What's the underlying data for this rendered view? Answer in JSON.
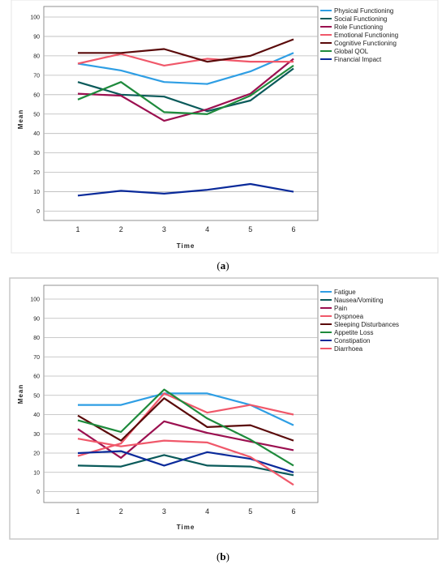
{
  "captions": {
    "a": "a",
    "b": "b"
  },
  "chart_data": [
    {
      "type": "line",
      "title": "",
      "xlabel": "Time",
      "ylabel": "Mean",
      "categories": [
        "1",
        "2",
        "3",
        "4",
        "5",
        "6"
      ],
      "yticks": [
        0,
        10,
        20,
        30,
        40,
        50,
        60,
        70,
        80,
        90,
        100
      ],
      "ylim": [
        0,
        100
      ],
      "grid": true,
      "legend": "top-right",
      "series": [
        {
          "name": "Physical Functioning",
          "color": "#2e9ee4",
          "values": [
            76,
            72.5,
            66.5,
            65.5,
            72,
            81.5
          ]
        },
        {
          "name": "Social Functioning",
          "color": "#0a5a5a",
          "values": [
            66.5,
            60,
            59,
            51.5,
            57,
            73.5
          ]
        },
        {
          "name": "Role Functioning",
          "color": "#9b1050",
          "values": [
            60.5,
            59.5,
            46.5,
            52.5,
            60.5,
            78.5
          ]
        },
        {
          "name": "Emotional Functioning",
          "color": "#f0586a",
          "values": [
            76,
            81,
            75,
            78.5,
            77,
            77
          ]
        },
        {
          "name": "Cognitive Functioning",
          "color": "#5a0a0a",
          "values": [
            81.5,
            81.5,
            83.5,
            77,
            80,
            88.5
          ]
        },
        {
          "name": "Global QOL",
          "color": "#1e8a3c",
          "values": [
            57.5,
            66.5,
            51,
            50,
            59.5,
            75
          ]
        },
        {
          "name": "Financial Impact",
          "color": "#0a2a9a",
          "values": [
            8,
            10.5,
            9,
            11,
            14,
            10
          ]
        }
      ]
    },
    {
      "type": "line",
      "title": "",
      "xlabel": "Time",
      "ylabel": "Mean",
      "categories": [
        "1",
        "2",
        "3",
        "4",
        "5",
        "6"
      ],
      "yticks": [
        0,
        10,
        20,
        30,
        40,
        50,
        60,
        70,
        80,
        90,
        100
      ],
      "ylim": [
        0,
        100
      ],
      "grid": true,
      "legend": "top-right",
      "series": [
        {
          "name": "Fatigue",
          "color": "#2e9ee4",
          "values": [
            45,
            45,
            51,
            51,
            45,
            34.5
          ]
        },
        {
          "name": "Nausea/Vomiting",
          "color": "#0a5a5a",
          "values": [
            13.5,
            13,
            19,
            13.5,
            13,
            8.5
          ]
        },
        {
          "name": "Pain",
          "color": "#9b1050",
          "values": [
            32.5,
            17.5,
            36.5,
            30.5,
            26,
            21.5
          ]
        },
        {
          "name": "Dyspnoea",
          "color": "#f0586a",
          "values": [
            18.5,
            25,
            51,
            41,
            45,
            40
          ]
        },
        {
          "name": "Sleeping Disturbances",
          "color": "#5a0a0a",
          "values": [
            39.5,
            26.5,
            48.5,
            33.5,
            34.5,
            26.5
          ]
        },
        {
          "name": "Appetite Loss",
          "color": "#1e8a3c",
          "values": [
            37,
            31,
            53,
            38,
            27,
            13.5
          ]
        },
        {
          "name": "Constipation",
          "color": "#0a2a9a",
          "values": [
            20,
            21,
            13.5,
            20.5,
            17,
            10
          ]
        },
        {
          "name": "Diarrhoea",
          "color": "#f0586a",
          "values": [
            27.5,
            23.5,
            26.5,
            25.5,
            18,
            3.5
          ]
        }
      ]
    }
  ]
}
